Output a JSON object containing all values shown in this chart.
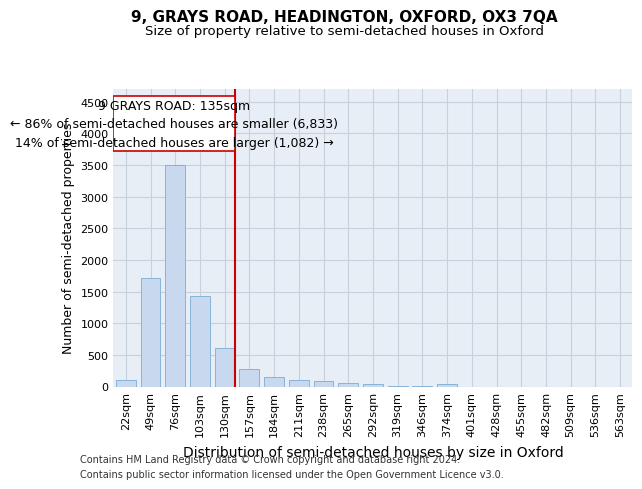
{
  "title_line1": "9, GRAYS ROAD, HEADINGTON, OXFORD, OX3 7QA",
  "title_line2": "Size of property relative to semi-detached houses in Oxford",
  "xlabel": "Distribution of semi-detached houses by size in Oxford",
  "ylabel": "Number of semi-detached properties",
  "footer_line1": "Contains HM Land Registry data © Crown copyright and database right 2024.",
  "footer_line2": "Contains public sector information licensed under the Open Government Licence v3.0.",
  "categories": [
    "22sqm",
    "49sqm",
    "76sqm",
    "103sqm",
    "130sqm",
    "157sqm",
    "184sqm",
    "211sqm",
    "238sqm",
    "265sqm",
    "292sqm",
    "319sqm",
    "346sqm",
    "374sqm",
    "401sqm",
    "428sqm",
    "455sqm",
    "482sqm",
    "509sqm",
    "536sqm",
    "563sqm"
  ],
  "values": [
    110,
    1720,
    3500,
    1430,
    610,
    280,
    150,
    100,
    90,
    60,
    40,
    5,
    5,
    40,
    0,
    0,
    0,
    0,
    0,
    0,
    0
  ],
  "bar_color": "#c8d8ee",
  "bar_edge_color": "#7aadd4",
  "property_bin_index": 4,
  "annotation_title": "9 GRAYS ROAD: 135sqm",
  "annotation_line2": "← 86% of semi-detached houses are smaller (6,833)",
  "annotation_line3": "14% of semi-detached houses are larger (1,082) →",
  "vline_color": "#cc0000",
  "box_edge_color": "#cc0000",
  "ylim": [
    0,
    4700
  ],
  "yticks": [
    0,
    500,
    1000,
    1500,
    2000,
    2500,
    3000,
    3500,
    4000,
    4500
  ],
  "grid_color": "#c8d0dc",
  "title_fontsize": 11,
  "subtitle_fontsize": 9.5,
  "axis_label_fontsize": 9,
  "tick_fontsize": 8,
  "annotation_fontsize": 9,
  "footer_fontsize": 7
}
